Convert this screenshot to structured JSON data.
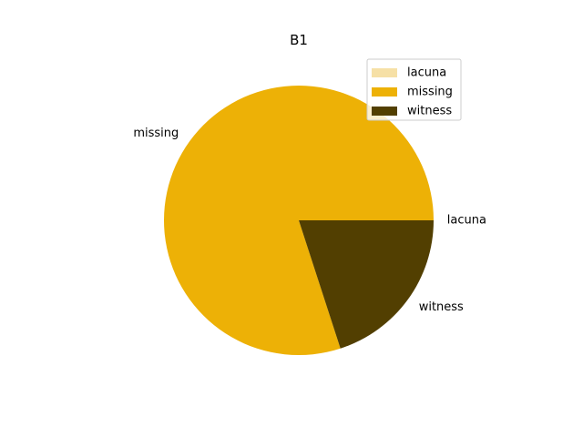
{
  "chart_data": {
    "type": "pie",
    "title": "B1",
    "categories": [
      "lacuna",
      "missing",
      "witness"
    ],
    "values": [
      0.0,
      0.8,
      0.2
    ],
    "colors": [
      "#f6e0a6",
      "#edb106",
      "#523f01"
    ],
    "start_angle_deg": 0,
    "direction": "counterclockwise",
    "legend": {
      "placement": "upper-right",
      "entries": [
        "lacuna",
        "missing",
        "witness"
      ]
    }
  }
}
